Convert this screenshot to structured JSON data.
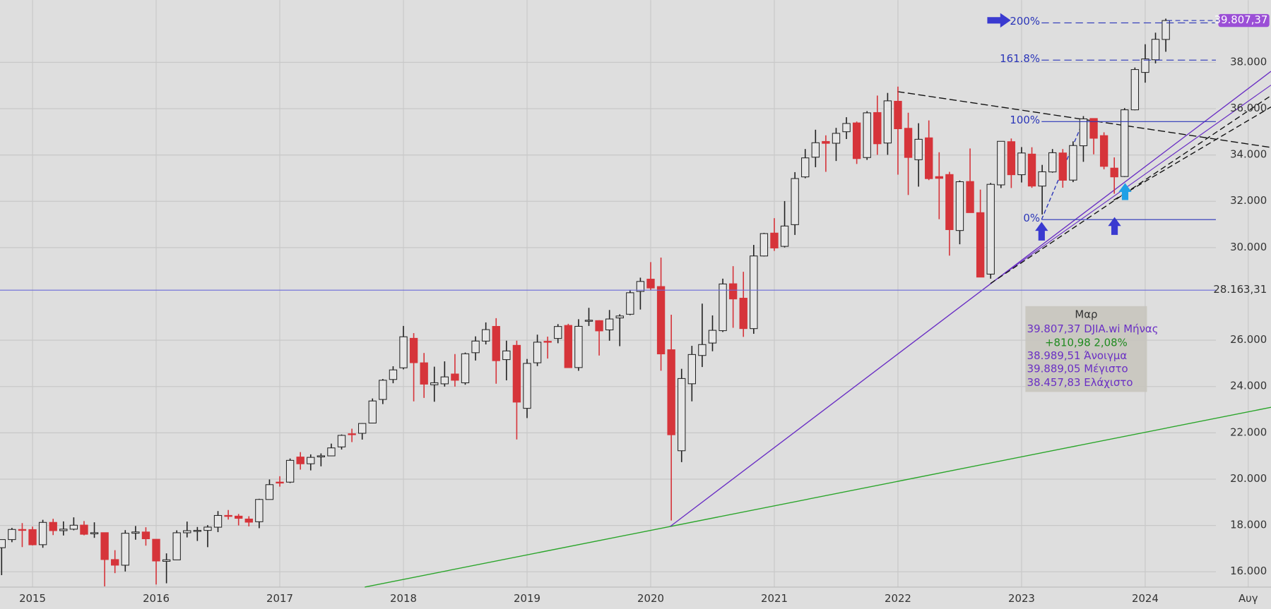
{
  "chart_data": {
    "type": "candlestick",
    "categories": [
      null,
      null,
      null,
      "2015",
      null,
      null,
      null,
      null,
      null,
      null,
      null,
      null,
      null,
      null,
      null,
      "2016",
      null,
      null,
      null,
      null,
      null,
      null,
      null,
      null,
      null,
      null,
      null,
      "2017",
      null,
      null,
      null,
      null,
      null,
      null,
      null,
      null,
      null,
      null,
      null,
      "2018",
      null,
      null,
      null,
      null,
      null,
      null,
      null,
      null,
      null,
      null,
      null,
      "2019",
      null,
      null,
      null,
      null,
      null,
      null,
      null,
      null,
      null,
      null,
      null,
      "2020",
      null,
      null,
      null,
      null,
      null,
      null,
      null,
      null,
      null,
      null,
      null,
      "2021",
      null,
      null,
      null,
      null,
      null,
      null,
      null,
      null,
      null,
      null,
      null,
      "2022",
      null,
      null,
      null,
      null,
      null,
      null,
      null,
      null,
      null,
      null,
      null,
      "2023",
      null,
      null,
      null,
      null,
      null,
      null,
      null,
      null,
      null,
      null,
      null,
      "2024",
      null,
      null,
      null,
      null,
      null,
      null,
      null,
      null,
      null,
      "Αυγ",
      null
    ],
    "open": [
      17040,
      17391,
      17828,
      17823,
      17170,
      18134,
      17776,
      17840,
      18017,
      17639,
      17690,
      16528,
      16284,
      17665,
      17719,
      17405,
      16452,
      16515,
      17685,
      17774,
      17787,
      17925,
      18434,
      18404,
      18279,
      18162,
      19122,
      19873,
      19872,
      20957,
      20665,
      20962,
      21005,
      21392,
      21961,
      21982,
      22423,
      23442,
      24305,
      24809,
      26083,
      25025,
      24076,
      24117,
      24542,
      24161,
      25461,
      25964,
      26598,
      25163,
      25780,
      23059,
      25026,
      25954,
      26076,
      26640,
      24820,
      26819,
      26847,
      26446,
      26963,
      27122,
      28109,
      28638,
      28319,
      25590,
      21227,
      24120,
      25342,
      25879,
      26413,
      28439,
      27816,
      26502,
      29638,
      30628,
      30054,
      30991,
      33054,
      33904,
      34584,
      34507,
      35004,
      35386,
      33889,
      35834,
      34516,
      36321,
      35153,
      33795,
      34741,
      33067,
      33157,
      30738,
      32855,
      31510,
      28855,
      32709,
      34576,
      33148,
      34039,
      32657,
      33268,
      34088,
      32916,
      34398,
      35576,
      34837,
      33434,
      33070,
      35950,
      37566,
      38112,
      38989.51,
      null,
      null,
      null,
      null,
      null,
      null,
      null,
      null,
      null
    ],
    "high": [
      17395,
      17895,
      18103,
      17951,
      18244,
      18289,
      18176,
      18351,
      18190,
      18137,
      17698,
      16933,
      17799,
      17978,
      17923,
      17405,
      16795,
      17791,
      18168,
      17935,
      18017,
      18622,
      18668,
      18496,
      18399,
      19152,
      19988,
      20126,
      20892,
      21169,
      21070,
      21112,
      21535,
      21930,
      22179,
      22420,
      23485,
      24327,
      24876,
      26617,
      26307,
      25449,
      24858,
      25087,
      25403,
      25468,
      26167,
      26769,
      26951,
      25981,
      25981,
      25191,
      26241,
      26155,
      26696,
      26709,
      26907,
      27399,
      26864,
      27306,
      27122,
      28175,
      28702,
      29374,
      29568,
      27102,
      24765,
      25758,
      27581,
      27072,
      28659,
      29199,
      28958,
      30116,
      30637,
      31272,
      32010,
      33259,
      34257,
      35091,
      34849,
      35171,
      35631,
      35444,
      35892,
      36566,
      36680,
      36953,
      35825,
      35372,
      35492,
      34117,
      33272,
      32898,
      34281,
      32505,
      32794,
      34595,
      34712,
      34342,
      34334,
      33572,
      34257,
      34257,
      34588,
      35679,
      35579,
      34979,
      33895,
      36026,
      37778,
      38783,
      39282,
      39889.05,
      null,
      null,
      null,
      null,
      null,
      null,
      null,
      null,
      null
    ],
    "low": [
      15855,
      17278,
      17067,
      17138,
      17037,
      17585,
      17568,
      17792,
      17575,
      17465,
      15370,
      15942,
      16013,
      17386,
      17128,
      15451,
      15503,
      16509,
      17484,
      17331,
      17063,
      17713,
      18255,
      18000,
      17960,
      17883,
      19123,
      19677,
      19832,
      20412,
      20379,
      20554,
      20996,
      21279,
      21600,
      21709,
      22416,
      23242,
      24142,
      24741,
      23360,
      23509,
      23344,
      23997,
      23997,
      24077,
      25124,
      25819,
      24122,
      24268,
      21713,
      22638,
      24883,
      25208,
      25870,
      24814,
      24680,
      26617,
      25339,
      25978,
      25743,
      27082,
      27325,
      28169,
      24681,
      18214,
      20735,
      23361,
      24843,
      25524,
      26355,
      26537,
      26143,
      26277,
      29617,
      29856,
      30006,
      30548,
      32996,
      33473,
      33272,
      33741,
      34689,
      33613,
      33785,
      34006,
      34006,
      33150,
      32272,
      32633,
      32913,
      31228,
      29653,
      30144,
      31508,
      28716,
      28660,
      32573,
      32573,
      32812,
      32581,
      31430,
      33235,
      32586,
      32828,
      33705,
      34029,
      33381,
      32327,
      33052,
      35930,
      37123,
      37957,
      38457.83,
      null,
      null,
      null,
      null,
      null,
      null,
      null,
      null,
      null
    ],
    "close": [
      17391,
      17828,
      17823,
      17165,
      18133,
      17776,
      17841,
      18011,
      17620,
      17690,
      16528,
      16285,
      17664,
      17720,
      17425,
      16466,
      16517,
      17685,
      17774,
      17787,
      17930,
      18432,
      18401,
      18308,
      18142,
      19124,
      19763,
      19864,
      20812,
      20663,
      20941,
      21009,
      21350,
      21891,
      21948,
      22405,
      23377,
      24272,
      24719,
      26149,
      25029,
      24103,
      24163,
      24416,
      24271,
      25415,
      25965,
      26458,
      25116,
      25538,
      23327,
      24999,
      25916,
      25929,
      26593,
      24815,
      26600,
      26864,
      26403,
      26917,
      27046,
      28051,
      28538,
      28256,
      25409,
      21917,
      24346,
      25383,
      25813,
      26428,
      28430,
      27782,
      26502,
      29639,
      30606,
      29983,
      30932,
      32982,
      33875,
      34529,
      34503,
      34935,
      35361,
      33844,
      35820,
      34484,
      36338,
      35132,
      33893,
      34678,
      32977,
      32990,
      30775,
      32845,
      31510,
      28726,
      32733,
      34590,
      33147,
      34086,
      32657,
      33274,
      34098,
      32908,
      34408,
      35560,
      34722,
      33508,
      33053,
      35951,
      37690,
      38150,
      38996,
      39807.37,
      null,
      null,
      null,
      null,
      null,
      null,
      null,
      null,
      null
    ],
    "up_color": "#e6e6e6",
    "down_color": "#d6343a",
    "ylim": [
      15340,
      40690
    ],
    "yticks": [
      {
        "value": 16000,
        "label": "16.000"
      },
      {
        "value": 18000,
        "label": "18.000"
      },
      {
        "value": 20000,
        "label": "20.000"
      },
      {
        "value": 22000,
        "label": "22.000"
      },
      {
        "value": 24000,
        "label": "24.000"
      },
      {
        "value": 26000,
        "label": "26.000"
      },
      {
        "value": 30000,
        "label": "30.000"
      },
      {
        "value": 32000,
        "label": "32.000"
      },
      {
        "value": 34000,
        "label": "34.000"
      },
      {
        "value": 36000,
        "label": "36.000"
      },
      {
        "value": 38000,
        "label": "38.000"
      }
    ],
    "grid": true,
    "last_price": {
      "value": 39807.37,
      "label": "39.807,37",
      "color": "#9b4fd6"
    },
    "crosshair": {
      "value": 28163.31,
      "label": "28.163,31",
      "color": "#6a6ad8"
    },
    "fib_levels": [
      {
        "label": "200%",
        "value": 39706,
        "style": "dashed"
      },
      {
        "label": "161.8%",
        "value": 38098,
        "style": "dashed"
      },
      {
        "label": "100%",
        "value": 35441,
        "style": "solid"
      },
      {
        "label": "0%",
        "value": 31210,
        "style": "solid"
      }
    ],
    "info_box": {
      "title": "Μαρ",
      "lines": [
        "39.807,37 DJIA.wi Μήνας",
        "+810,98 2,08%",
        "38.989,51 Άνοιγμα",
        "39.889,05 Μέγιστο",
        "38.457,83 Ελάχιστο"
      ]
    }
  }
}
